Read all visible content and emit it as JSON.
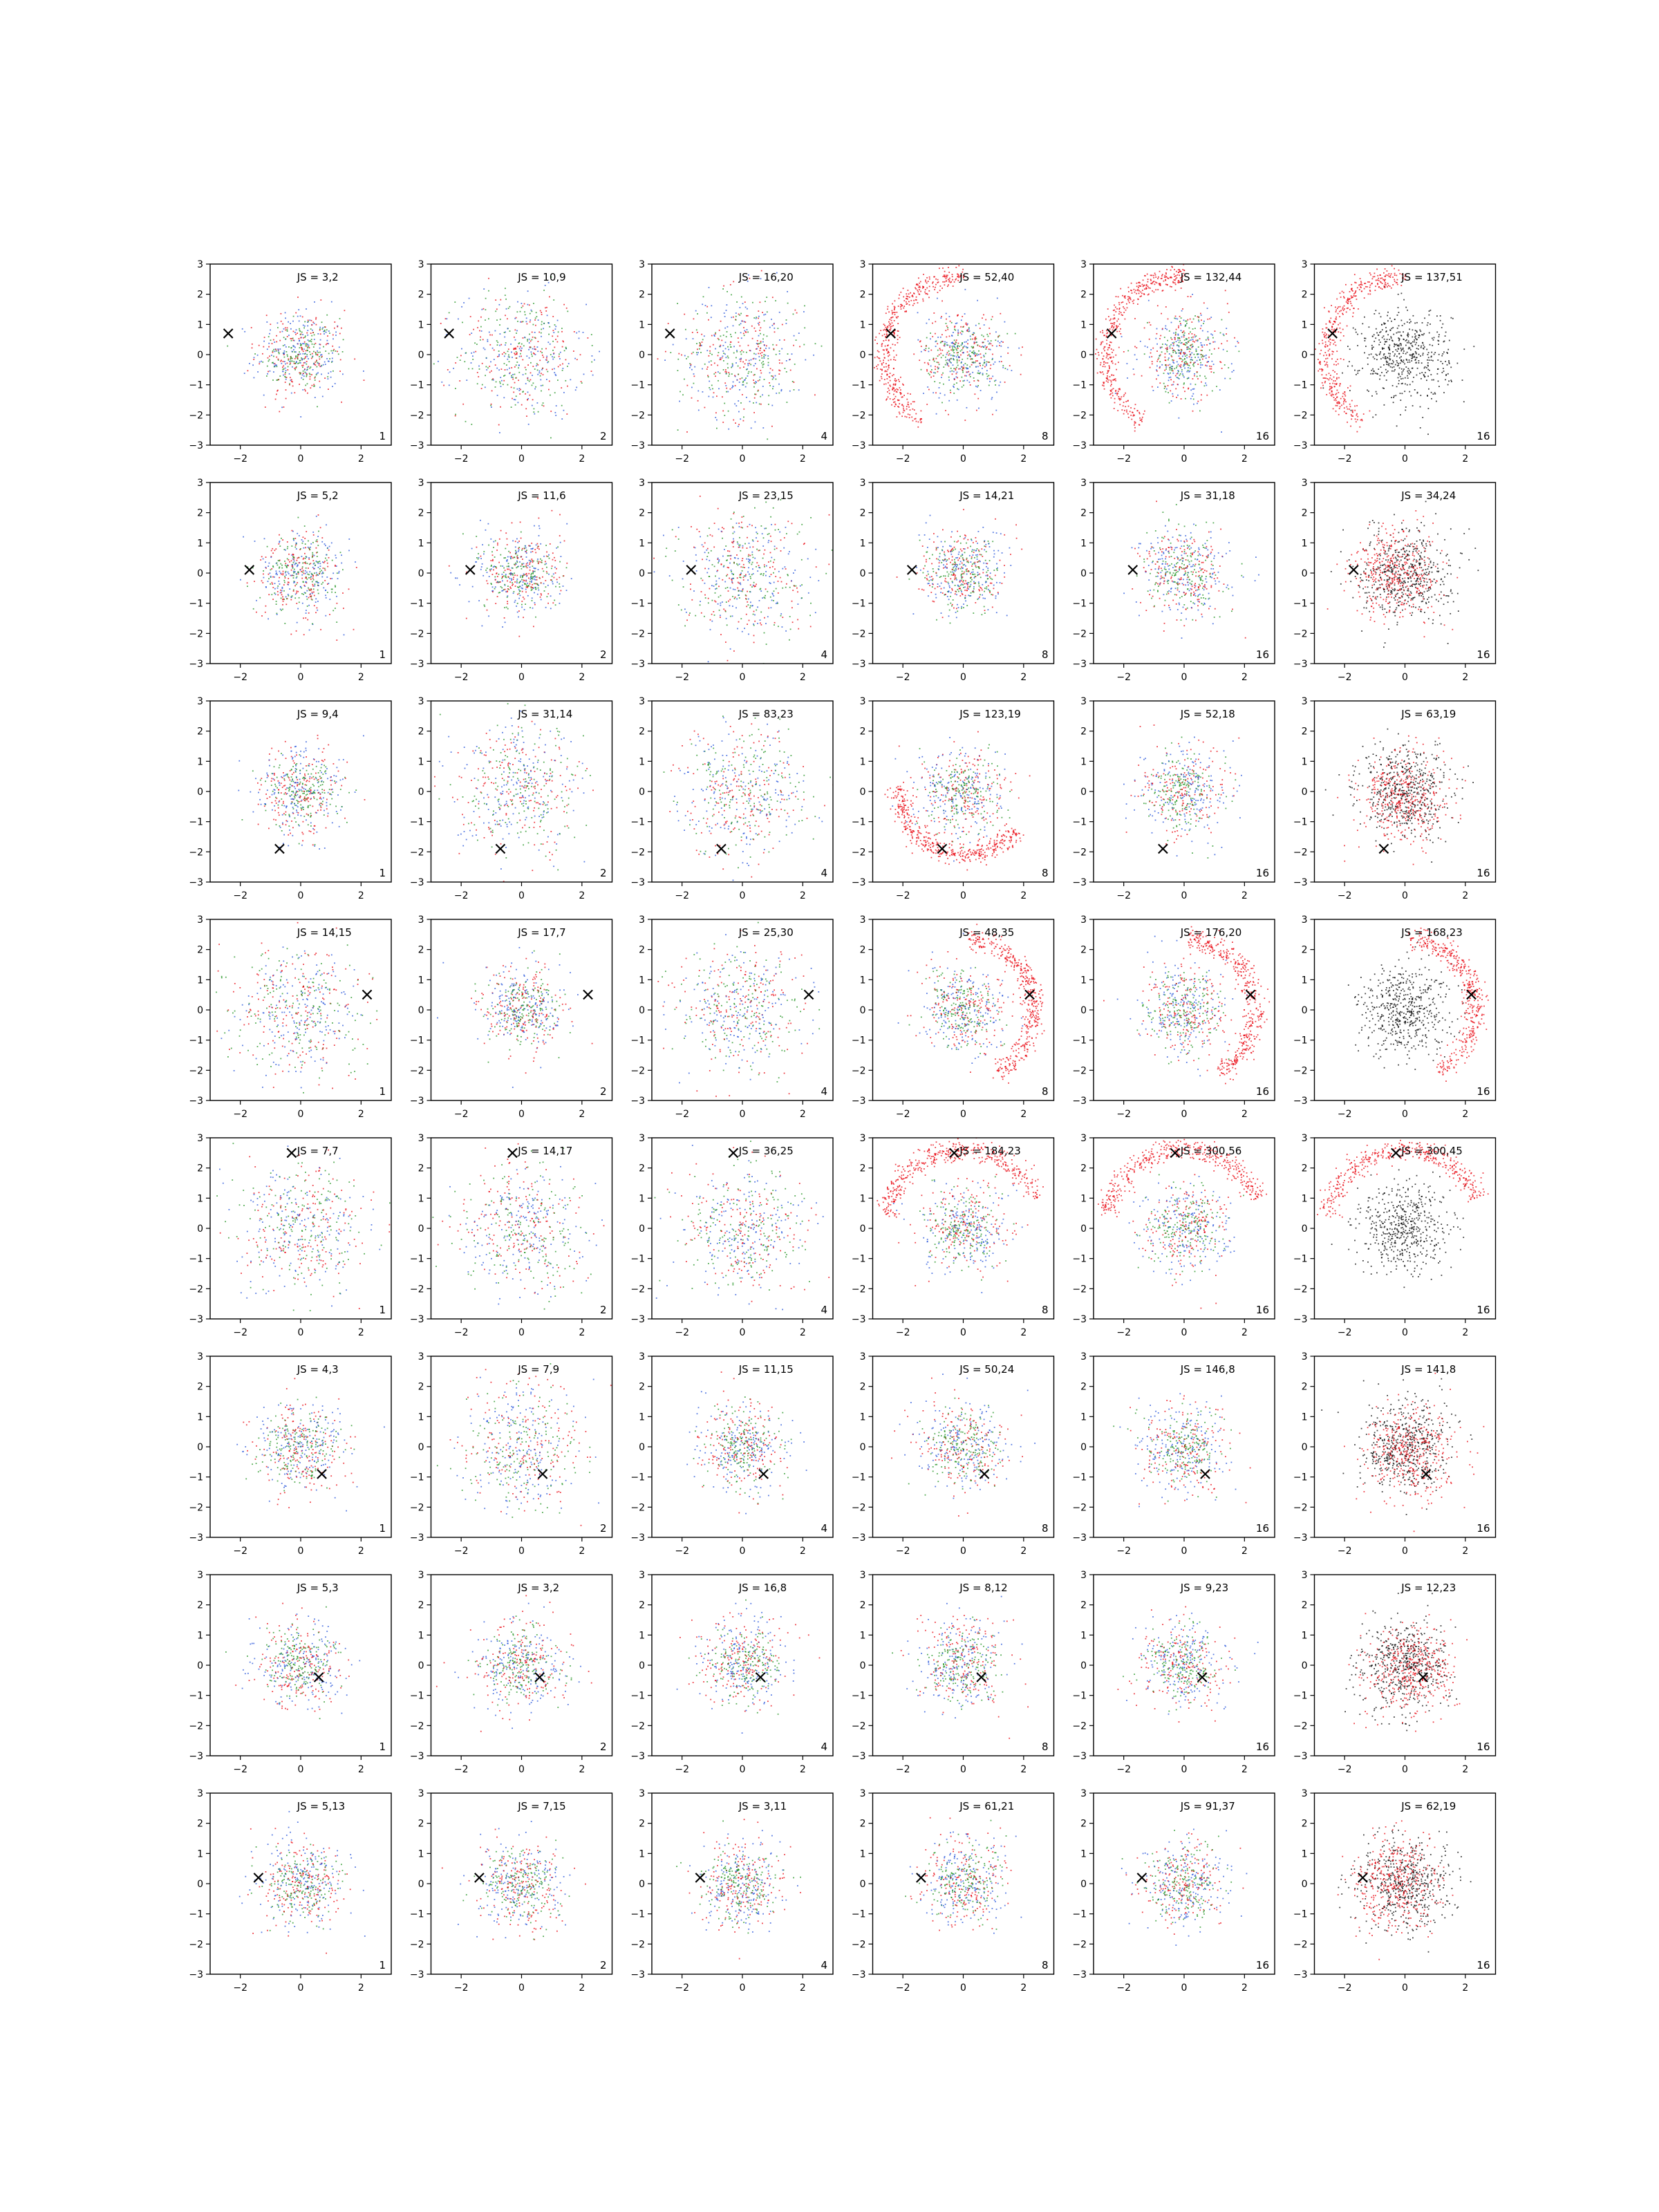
{
  "figure": {
    "rows": 8,
    "cols": 6,
    "column_badges": [
      "1",
      "2",
      "4",
      "8",
      "16",
      "16"
    ],
    "series_colors": {
      "red": "#e8000b",
      "green": "#1a8f1a",
      "blue": "#1f4fd8",
      "black": "#000000",
      "marker": "#000000"
    },
    "marker_symbol": "×"
  },
  "chart_data": {
    "type": "scatter",
    "xlim": [
      -3,
      3
    ],
    "ylim": [
      -3,
      3
    ],
    "xticks": [
      "−2",
      "0",
      "2"
    ],
    "yticks": [
      "3",
      "2",
      "1",
      "0",
      "−1",
      "−2",
      "−3"
    ],
    "grid": false,
    "rows": [
      {
        "marker": [
          -2.4,
          0.7
        ],
        "js": [
          "JS = 3,2",
          "JS = 10,9",
          "JS = 16,20",
          "JS = 52,40",
          "JS = 132,44",
          "JS = 137,51"
        ],
        "pattern": [
          "blob",
          "spread",
          "spread",
          "ring",
          "ring",
          "ring"
        ]
      },
      {
        "marker": [
          -1.7,
          0.1
        ],
        "js": [
          "JS = 5,2",
          "JS = 11,6",
          "JS = 23,15",
          "JS = 14,21",
          "JS = 31,18",
          "JS = 34,24"
        ],
        "pattern": [
          "blob",
          "blob",
          "spread",
          "blob",
          "blob",
          "blob"
        ]
      },
      {
        "marker": [
          -0.7,
          -1.9
        ],
        "js": [
          "JS = 9,4",
          "JS = 31,14",
          "JS = 83,23",
          "JS = 123,19",
          "JS = 52,18",
          "JS = 63,19"
        ],
        "pattern": [
          "blob",
          "spread",
          "spread",
          "ring",
          "blob",
          "blob"
        ]
      },
      {
        "marker": [
          2.2,
          0.5
        ],
        "js": [
          "JS = 14,15",
          "JS = 17,7",
          "JS = 25,30",
          "JS = 48,35",
          "JS = 176,20",
          "JS = 168,23"
        ],
        "pattern": [
          "spread",
          "blob",
          "spread",
          "ring",
          "ring",
          "ring"
        ]
      },
      {
        "marker": [
          -0.3,
          2.5
        ],
        "js": [
          "JS = 7,7",
          "JS = 14,17",
          "JS = 36,25",
          "JS = 184,23",
          "JS = 300,56",
          "JS = 300,45"
        ],
        "pattern": [
          "spread",
          "spread",
          "spread",
          "ring",
          "ring",
          "ring"
        ]
      },
      {
        "marker": [
          0.7,
          -0.9
        ],
        "js": [
          "JS = 4,3",
          "JS = 7,9",
          "JS = 11,15",
          "JS = 50,24",
          "JS = 146,8",
          "JS = 141,8"
        ],
        "pattern": [
          "blob",
          "spread",
          "blob",
          "blob",
          "blob",
          "blob"
        ]
      },
      {
        "marker": [
          0.6,
          -0.4
        ],
        "js": [
          "JS = 5,3",
          "JS = 3,2",
          "JS = 16,8",
          "JS = 8,12",
          "JS = 9,23",
          "JS = 12,23"
        ],
        "pattern": [
          "blob",
          "blob",
          "blob",
          "blob",
          "blob",
          "blob"
        ]
      },
      {
        "marker": [
          -1.4,
          0.2
        ],
        "js": [
          "JS = 5,13",
          "JS = 7,15",
          "JS = 3,11",
          "JS = 61,21",
          "JS = 91,37",
          "JS = 62,19"
        ],
        "pattern": [
          "blob",
          "blob",
          "blob",
          "blob",
          "blob",
          "blob"
        ]
      }
    ]
  }
}
